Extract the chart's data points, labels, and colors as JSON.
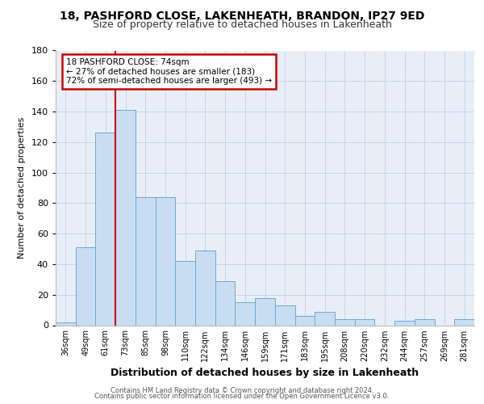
{
  "title1": "18, PASHFORD CLOSE, LAKENHEATH, BRANDON, IP27 9ED",
  "title2": "Size of property relative to detached houses in Lakenheath",
  "xlabel": "Distribution of detached houses by size in Lakenheath",
  "ylabel": "Number of detached properties",
  "categories": [
    "36sqm",
    "49sqm",
    "61sqm",
    "73sqm",
    "85sqm",
    "98sqm",
    "110sqm",
    "122sqm",
    "134sqm",
    "146sqm",
    "159sqm",
    "171sqm",
    "183sqm",
    "195sqm",
    "208sqm",
    "220sqm",
    "232sqm",
    "244sqm",
    "257sqm",
    "269sqm",
    "281sqm"
  ],
  "values": [
    2,
    51,
    126,
    141,
    84,
    84,
    42,
    49,
    29,
    15,
    18,
    13,
    6,
    9,
    4,
    4,
    0,
    3,
    4,
    0,
    4
  ],
  "bar_color": "#c9ddf2",
  "bar_edge_color": "#6aaad4",
  "grid_color": "#c8d4e8",
  "background_color": "#e8eef8",
  "property_sqm": 74,
  "pct_smaller": 27,
  "n_smaller": 183,
  "pct_semi_larger": 72,
  "n_semi_larger": 493,
  "annotation_box_color": "#ffffff",
  "annotation_border_color": "#cc0000",
  "property_line_color": "#cc0000",
  "footer1": "Contains HM Land Registry data © Crown copyright and database right 2024.",
  "footer2": "Contains public sector information licensed under the Open Government Licence v3.0.",
  "ylim": [
    0,
    180
  ],
  "yticks": [
    0,
    20,
    40,
    60,
    80,
    100,
    120,
    140,
    160,
    180
  ],
  "title1_fontsize": 10,
  "title2_fontsize": 9,
  "ylabel_fontsize": 8,
  "xlabel_fontsize": 9,
  "tick_fontsize": 7,
  "footer_fontsize": 6,
  "annot_fontsize": 7.5
}
